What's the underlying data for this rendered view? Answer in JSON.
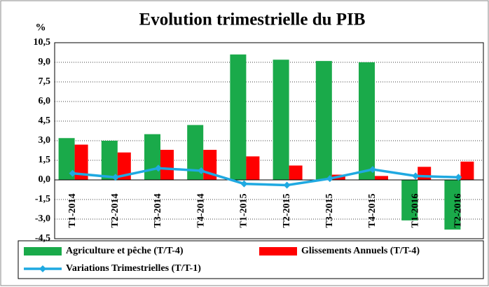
{
  "chart_data": {
    "type": "bar",
    "title": "Evolution trimestrielle du PIB",
    "y_label": "%",
    "categories": [
      "T1-2014",
      "T2-2014",
      "T3-2014",
      "T4-2014",
      "T1-2015",
      "T2-2015",
      "T3-2015",
      "T4-2015",
      "T1-2016",
      "T2-2016"
    ],
    "series": [
      {
        "name": "Agriculture et pêche (T/T-4)",
        "type": "bar",
        "color": "#1aaa4a",
        "values": [
          3.2,
          3.0,
          3.5,
          4.2,
          9.6,
          9.2,
          9.1,
          9.0,
          -3.1,
          -3.8
        ]
      },
      {
        "name": "Glissements Annuels  (T/T-4)",
        "type": "bar",
        "color": "#ff0000",
        "values": [
          2.7,
          2.1,
          2.3,
          2.3,
          1.8,
          1.1,
          0.4,
          0.3,
          1.0,
          1.4
        ]
      },
      {
        "name": "Variations Trimestrielles (T/T-1)",
        "type": "line",
        "color": "#1fa9e1",
        "values": [
          0.5,
          0.2,
          0.9,
          0.7,
          -0.3,
          -0.4,
          0.1,
          0.8,
          0.3,
          0.2
        ]
      }
    ],
    "ylim": [
      -4.5,
      10.5
    ],
    "yticks": [
      {
        "value": -4.5,
        "label": "-4,5"
      },
      {
        "value": -3,
        "label": "-3,0"
      },
      {
        "value": -1.5,
        "label": "-1,5"
      },
      {
        "value": 0,
        "label": "0,0"
      },
      {
        "value": 1.5,
        "label": "1,5"
      },
      {
        "value": 3,
        "label": "3,0"
      },
      {
        "value": 4.5,
        "label": "4,5"
      },
      {
        "value": 6,
        "label": "6,0"
      },
      {
        "value": 7.5,
        "label": "7,5"
      },
      {
        "value": 9,
        "label": "9,0"
      },
      {
        "value": 10.5,
        "label": "10,5"
      }
    ],
    "grid": true
  }
}
